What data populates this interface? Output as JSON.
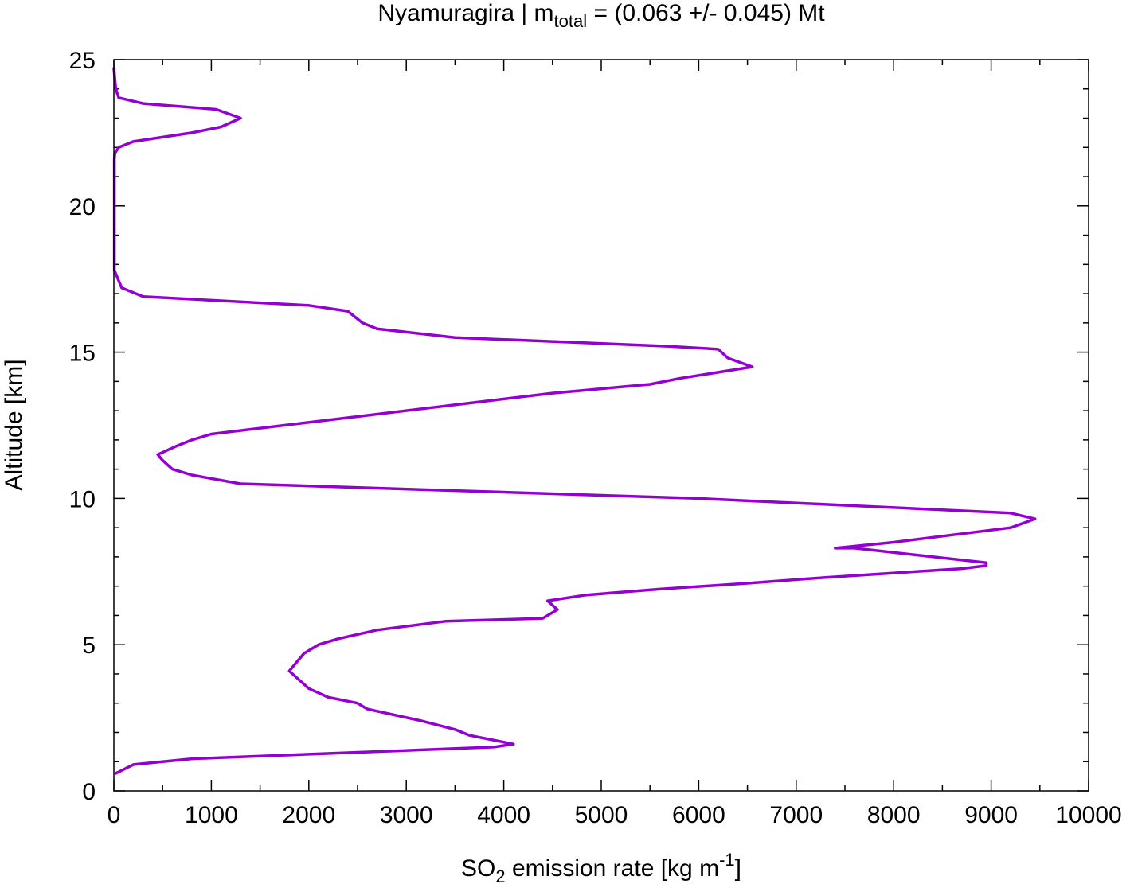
{
  "chart_data": {
    "type": "line",
    "title": {
      "prefix": "Nyamuragira | m",
      "subscript": "total",
      "suffix": " = (0.063 +/- 0.045) Mt"
    },
    "xlabel": {
      "prefix": "SO",
      "subscript": "2",
      "middle": " emission rate [kg m",
      "superscript": "-1",
      "suffix": "]"
    },
    "ylabel": "Altitude [km]",
    "xlim": [
      0,
      10000
    ],
    "ylim": [
      0,
      25
    ],
    "x_ticks": [
      "0",
      "1000",
      "2000",
      "3000",
      "4000",
      "5000",
      "6000",
      "7000",
      "8000",
      "9000",
      "10000"
    ],
    "y_ticks": [
      "0",
      "5",
      "10",
      "15",
      "20",
      "25"
    ],
    "grid": false,
    "line_color": "#9400d3",
    "series": [
      {
        "x": [
          20,
          200,
          800,
          3900,
          4100,
          3650,
          3500,
          3150,
          2600,
          2500,
          2200,
          2000,
          1800,
          1950,
          2100,
          2300,
          2700,
          3400,
          4400,
          4550,
          4450,
          4850,
          5600,
          6500,
          7300,
          8700,
          8950,
          8950,
          7600,
          7400,
          8000,
          9200,
          9450,
          9200,
          6000,
          1300,
          800,
          600,
          500,
          450,
          650,
          800,
          1000,
          2500,
          3500,
          4500,
          5500,
          5800,
          6550,
          6300,
          6200,
          5700,
          3500,
          2700,
          2550,
          2400,
          2000,
          300,
          80,
          5,
          5,
          10,
          50,
          200,
          800,
          1100,
          1300,
          1050,
          300,
          50,
          20,
          0
        ],
        "y": [
          0.6,
          0.9,
          1.1,
          1.5,
          1.6,
          1.9,
          2.1,
          2.4,
          2.8,
          3.0,
          3.2,
          3.5,
          4.1,
          4.7,
          5.0,
          5.2,
          5.5,
          5.8,
          5.9,
          6.2,
          6.5,
          6.7,
          6.9,
          7.1,
          7.3,
          7.6,
          7.7,
          7.8,
          8.3,
          8.3,
          8.5,
          9.0,
          9.3,
          9.5,
          10.0,
          10.5,
          10.8,
          11.0,
          11.3,
          11.5,
          11.8,
          12.0,
          12.2,
          12.8,
          13.2,
          13.6,
          13.9,
          14.1,
          14.5,
          14.8,
          15.1,
          15.2,
          15.5,
          15.8,
          16.0,
          16.4,
          16.6,
          16.9,
          17.2,
          17.8,
          21.6,
          21.8,
          22.0,
          22.2,
          22.5,
          22.7,
          23.0,
          23.3,
          23.5,
          23.7,
          24.0,
          24.7
        ]
      }
    ]
  }
}
